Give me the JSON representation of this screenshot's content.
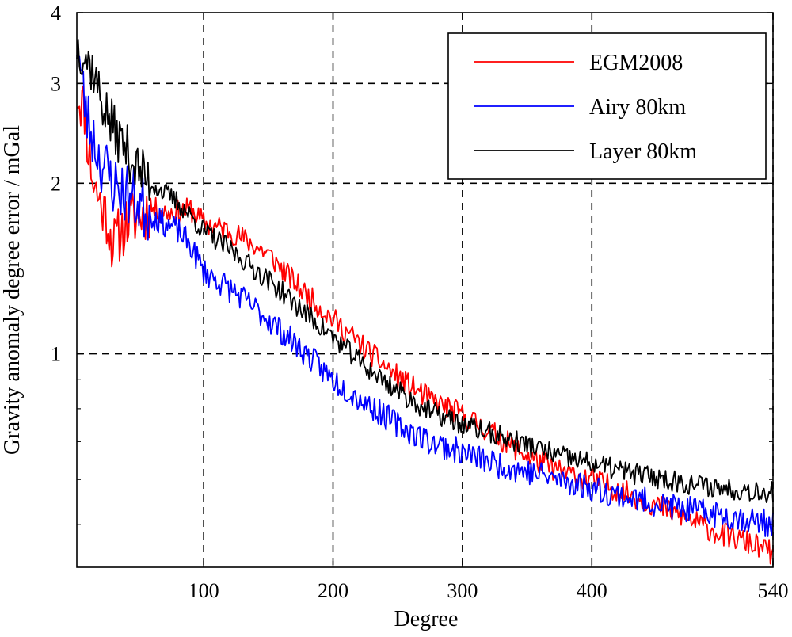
{
  "chart_data": {
    "type": "line",
    "title": "",
    "xlabel": "Degree",
    "ylabel": "Gravity anomaly degree error / mGal",
    "xscale": "linear",
    "yscale": "log",
    "xlim": [
      2,
      540
    ],
    "ylim": [
      0.42,
      4
    ],
    "grid": true,
    "legend_position": "top-right",
    "x_ticks": [
      {
        "value": 100,
        "label": "100"
      },
      {
        "value": 200,
        "label": "200"
      },
      {
        "value": 300,
        "label": "300"
      },
      {
        "value": 400,
        "label": "400"
      },
      {
        "value": 540,
        "label": "540"
      }
    ],
    "y_ticks": [
      {
        "value": 1,
        "label": "1"
      },
      {
        "value": 2,
        "label": "2"
      },
      {
        "value": 3,
        "label": "3"
      },
      {
        "value": 4,
        "label": "4"
      }
    ],
    "series": [
      {
        "name": "EGM2008",
        "color": "#ff0000",
        "noise": 0.05,
        "seed": 11,
        "x": [
          2,
          8,
          10,
          15,
          20,
          25,
          30,
          40,
          50,
          60,
          70,
          80,
          90,
          100,
          120,
          150,
          175,
          200,
          225,
          250,
          275,
          300,
          325,
          350,
          375,
          400,
          425,
          450,
          475,
          500,
          520,
          540
        ],
        "y": [
          2.9,
          2.7,
          2.4,
          2.0,
          1.85,
          1.75,
          1.55,
          1.7,
          1.75,
          1.8,
          1.78,
          1.78,
          1.8,
          1.7,
          1.65,
          1.5,
          1.3,
          1.15,
          1.02,
          0.91,
          0.83,
          0.78,
          0.72,
          0.66,
          0.62,
          0.6,
          0.57,
          0.54,
          0.51,
          0.48,
          0.465,
          0.445
        ]
      },
      {
        "name": "Airy 80km",
        "color": "#0000ff",
        "noise": 0.055,
        "seed": 23,
        "x": [
          2,
          6,
          10,
          15,
          20,
          25,
          30,
          35,
          40,
          50,
          60,
          70,
          80,
          90,
          100,
          125,
          150,
          175,
          200,
          225,
          250,
          275,
          300,
          325,
          350,
          375,
          400,
          425,
          450,
          475,
          500,
          520,
          540
        ],
        "y": [
          3.6,
          3.0,
          2.6,
          2.4,
          2.2,
          2.1,
          2.0,
          1.95,
          1.92,
          1.85,
          1.75,
          1.7,
          1.65,
          1.55,
          1.4,
          1.28,
          1.15,
          1.02,
          0.9,
          0.82,
          0.75,
          0.7,
          0.67,
          0.64,
          0.62,
          0.6,
          0.58,
          0.56,
          0.545,
          0.53,
          0.52,
          0.51,
          0.5
        ]
      },
      {
        "name": "Layer 80km",
        "color": "#000000",
        "noise": 0.045,
        "seed": 37,
        "x": [
          2,
          8,
          10,
          15,
          20,
          25,
          30,
          40,
          50,
          60,
          70,
          80,
          90,
          100,
          125,
          150,
          175,
          200,
          225,
          250,
          275,
          300,
          325,
          350,
          375,
          400,
          425,
          450,
          475,
          500,
          520,
          540
        ],
        "y": [
          3.5,
          3.4,
          3.3,
          3.15,
          2.85,
          2.65,
          2.5,
          2.3,
          2.1,
          2.0,
          1.92,
          1.85,
          1.75,
          1.65,
          1.5,
          1.35,
          1.2,
          1.07,
          0.95,
          0.86,
          0.79,
          0.75,
          0.72,
          0.69,
          0.66,
          0.64,
          0.62,
          0.605,
          0.59,
          0.58,
          0.575,
          0.57
        ]
      }
    ]
  }
}
